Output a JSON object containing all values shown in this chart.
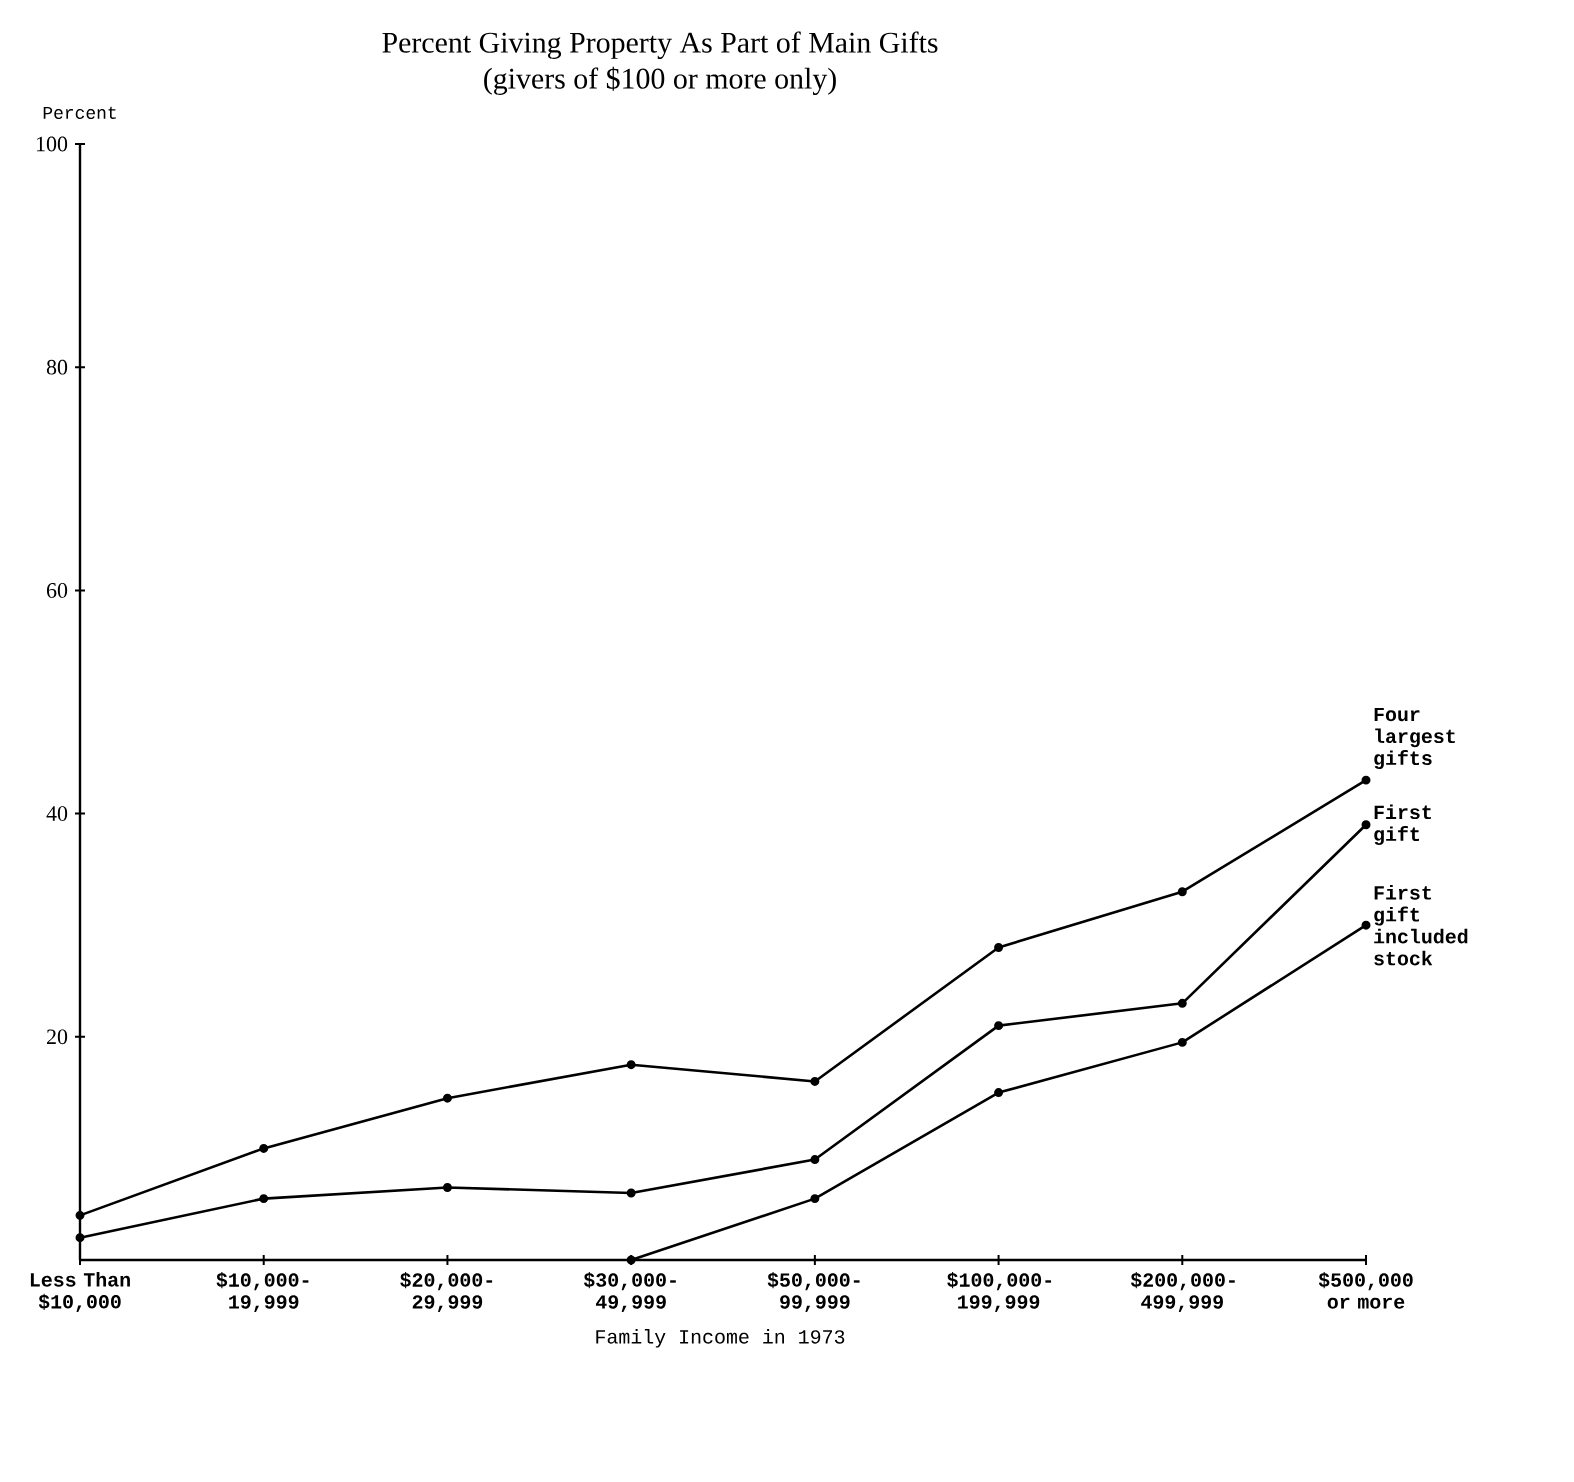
{
  "chart_data": {
    "type": "line",
    "title": "Percent Giving Property As Part of Main Gifts",
    "subtitle": "(givers of $100 or more only)",
    "xlabel": "Family Income in 1973",
    "ylabel": "Percent",
    "categories": [
      "Less Than $10,000",
      "$10,000-19,999",
      "$20,000-29,999",
      "$30,000-49,999",
      "$50,000-99,999",
      "$100,000-199,999",
      "$200,000-499,999",
      "$500,000 or more"
    ],
    "series": [
      {
        "name": "Four largest gifts",
        "color": "#000000",
        "values": [
          4,
          10,
          14.5,
          17.5,
          16,
          28,
          33,
          43
        ]
      },
      {
        "name": "First gift",
        "color": "#000000",
        "values": [
          2,
          5.5,
          6.5,
          6,
          9,
          21,
          23,
          39
        ]
      },
      {
        "name": "First gift included stock",
        "color": "#000000",
        "values": [
          null,
          null,
          null,
          0,
          5.5,
          15,
          19.5,
          30
        ]
      }
    ],
    "ylim": [
      0,
      100
    ],
    "yticks": [
      20,
      40,
      60,
      80,
      100
    ],
    "marker": "circle",
    "line_style": "solid"
  }
}
